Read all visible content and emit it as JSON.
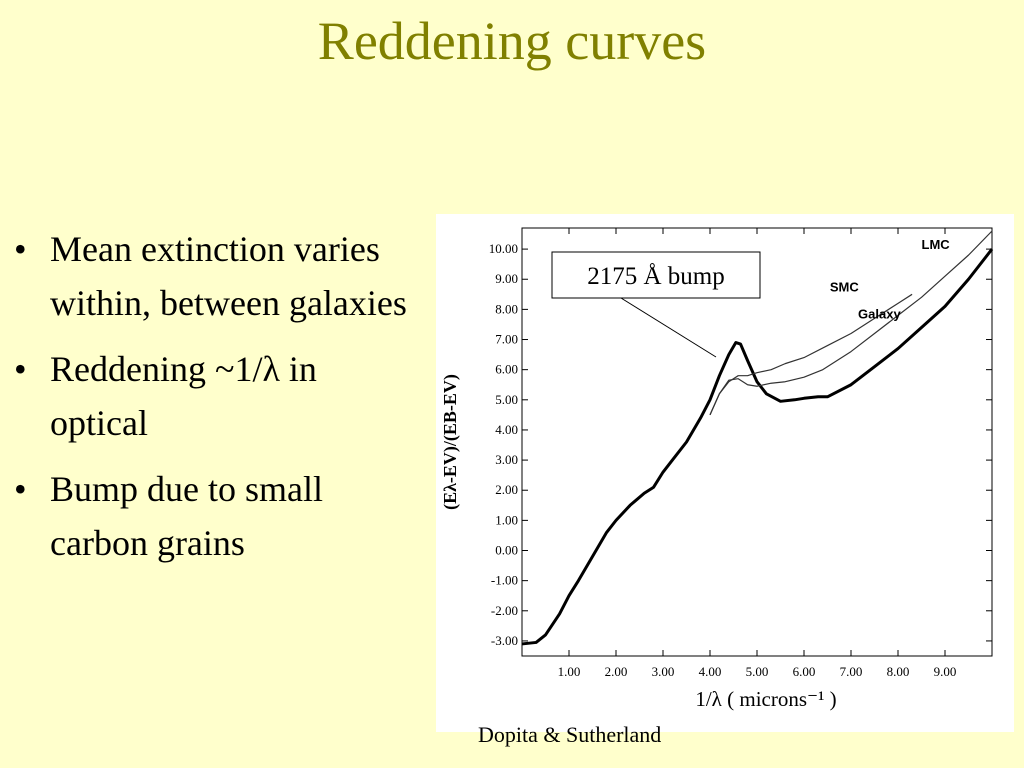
{
  "slide": {
    "title": "Reddening curves",
    "bullets": [
      "Mean extinction varies within, between galaxies",
      "Reddening ~1/λ in optical",
      "Bump due to small carbon grains"
    ],
    "bullet_glyph": "•",
    "credit": "Dopita & Sutherland"
  },
  "chart_data": {
    "type": "line",
    "xlabel": "1/λ  ( microns⁻¹ )",
    "ylabel": "(Eλ-EV)/(EB-EV)",
    "xlim": [
      0.0,
      10.0
    ],
    "ylim": [
      -3.5,
      10.7
    ],
    "x_ticks": [
      "1.00",
      "2.00",
      "3.00",
      "4.00",
      "5.00",
      "6.00",
      "7.00",
      "8.00",
      "9.00"
    ],
    "y_ticks": [
      "10.00",
      "9.00",
      "8.00",
      "7.00",
      "6.00",
      "5.00",
      "4.00",
      "3.00",
      "2.00",
      "1.00",
      "0.00",
      "-1.00",
      "-2.00",
      "-3.00"
    ],
    "grid": false,
    "annotation": "2175 Å bump",
    "series": [
      {
        "name": "Galaxy",
        "x": [
          0.0,
          0.3,
          0.5,
          0.8,
          1.0,
          1.2,
          1.5,
          1.8,
          2.0,
          2.3,
          2.6,
          2.8,
          3.0,
          3.2,
          3.5,
          3.8,
          4.0,
          4.2,
          4.4,
          4.55,
          4.65,
          4.8,
          5.0,
          5.2,
          5.5,
          5.8,
          6.0,
          6.3,
          6.5,
          7.0,
          7.5,
          8.0,
          8.5,
          9.0,
          9.5,
          10.0
        ],
        "y": [
          -3.1,
          -3.05,
          -2.8,
          -2.1,
          -1.5,
          -1.0,
          -0.2,
          0.6,
          1.0,
          1.5,
          1.9,
          2.1,
          2.6,
          3.0,
          3.6,
          4.4,
          5.0,
          5.8,
          6.5,
          6.9,
          6.85,
          6.3,
          5.6,
          5.2,
          4.95,
          5.0,
          5.05,
          5.1,
          5.1,
          5.5,
          6.1,
          6.7,
          7.4,
          8.1,
          9.0,
          10.0
        ],
        "color": "#000000"
      },
      {
        "name": "LMC",
        "x": [
          4.0,
          4.2,
          4.4,
          4.6,
          4.8,
          5.0,
          5.3,
          5.6,
          6.0,
          6.4,
          7.0,
          7.5,
          8.0,
          8.5,
          9.0,
          9.5,
          10.0
        ],
        "y": [
          4.5,
          5.2,
          5.65,
          5.7,
          5.5,
          5.45,
          5.55,
          5.6,
          5.75,
          6.0,
          6.6,
          7.2,
          7.8,
          8.4,
          9.1,
          9.8,
          10.6
        ],
        "color": "#333333"
      },
      {
        "name": "SMC",
        "x": [
          4.0,
          4.2,
          4.4,
          4.6,
          4.8,
          5.0,
          5.3,
          5.6,
          6.0,
          6.5,
          7.0,
          7.5,
          8.0,
          8.3
        ],
        "y": [
          4.5,
          5.2,
          5.6,
          5.8,
          5.8,
          5.9,
          6.0,
          6.2,
          6.4,
          6.8,
          7.2,
          7.7,
          8.2,
          8.5
        ],
        "color": "#333333"
      }
    ]
  }
}
